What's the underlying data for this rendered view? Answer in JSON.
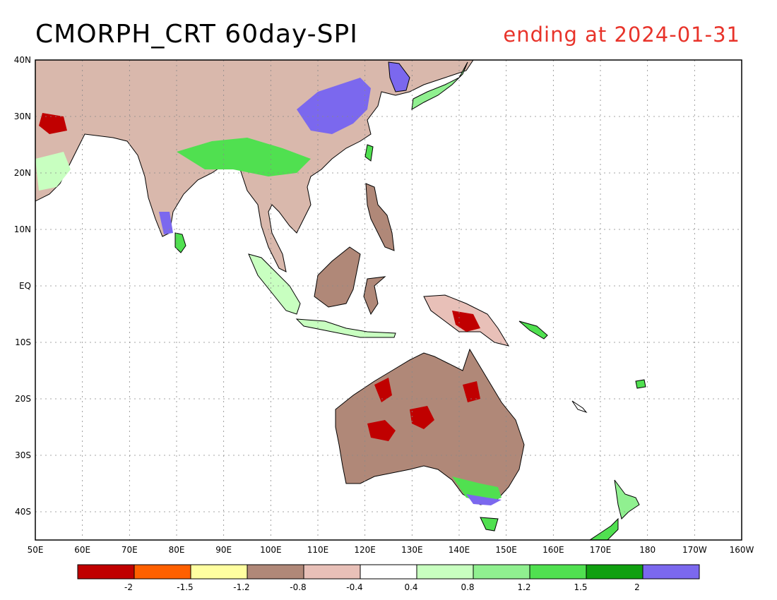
{
  "header": {
    "title": "CMORPH_CRT 60day-SPI",
    "ending": "ending at 2024-01-31"
  },
  "map": {
    "lon_range": [
      50,
      200
    ],
    "lat_range": [
      -45,
      40
    ],
    "lat_ticks": [
      {
        "value": 40,
        "label": "40N"
      },
      {
        "value": 30,
        "label": "30N"
      },
      {
        "value": 20,
        "label": "20N"
      },
      {
        "value": 10,
        "label": "10N"
      },
      {
        "value": 0,
        "label": "EQ"
      },
      {
        "value": -10,
        "label": "10S"
      },
      {
        "value": -20,
        "label": "20S"
      },
      {
        "value": -30,
        "label": "30S"
      },
      {
        "value": -40,
        "label": "40S"
      }
    ],
    "lon_ticks": [
      {
        "value": 50,
        "label": "50E"
      },
      {
        "value": 60,
        "label": "60E"
      },
      {
        "value": 70,
        "label": "70E"
      },
      {
        "value": 80,
        "label": "80E"
      },
      {
        "value": 90,
        "label": "90E"
      },
      {
        "value": 100,
        "label": "100E"
      },
      {
        "value": 110,
        "label": "110E"
      },
      {
        "value": 120,
        "label": "120E"
      },
      {
        "value": 130,
        "label": "130E"
      },
      {
        "value": 140,
        "label": "140E"
      },
      {
        "value": 150,
        "label": "150E"
      },
      {
        "value": 160,
        "label": "160E"
      },
      {
        "value": 170,
        "label": "170E"
      },
      {
        "value": 180,
        "label": "180"
      },
      {
        "value": 190,
        "label": "170W"
      },
      {
        "value": 200,
        "label": "160W"
      }
    ],
    "grid": true
  },
  "colorbar": {
    "colors": [
      "#c00000",
      "#ff6000",
      "#ffffa0",
      "#b08878",
      "#e8c0b8",
      "#ffffff",
      "#c8ffc0",
      "#90f090",
      "#50e050",
      "#10a010",
      "#7b68ee"
    ],
    "labels": [
      "-2",
      "-1.5",
      "-1.2",
      "-0.8",
      "-0.4",
      "0.4",
      "0.8",
      "1.2",
      "1.5",
      "2"
    ]
  }
}
